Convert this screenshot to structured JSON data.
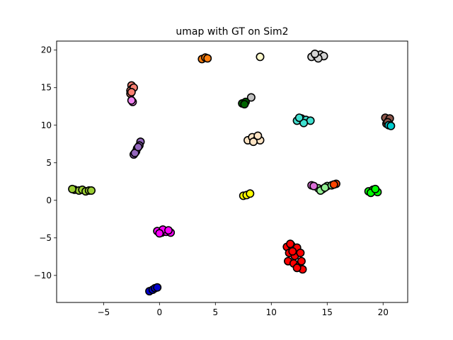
{
  "chart_data": {
    "type": "scatter",
    "title": "umap with GT on Sim2",
    "xlabel": "",
    "ylabel": "",
    "xlim": [
      -9.2,
      22.2
    ],
    "ylim": [
      -13.6,
      21.2
    ],
    "xticks": [
      -5,
      0,
      5,
      10,
      15,
      20
    ],
    "yticks": [
      -10,
      -5,
      0,
      5,
      10,
      15,
      20
    ],
    "xtick_labels": [
      "−5",
      "0",
      "5",
      "10",
      "15",
      "20"
    ],
    "ytick_labels": [
      "−10",
      "−5",
      "0",
      "5",
      "10",
      "15",
      "20"
    ],
    "grid": false,
    "legend": false,
    "marker_edge_color": "#000000",
    "series": [
      {
        "color": "#9acd32",
        "points": [
          [
            -7.6,
            1.4
          ],
          [
            -7.2,
            1.3
          ],
          [
            -6.9,
            1.4
          ],
          [
            -6.6,
            1.2
          ],
          [
            -6.3,
            1.3
          ],
          [
            -7.8,
            1.5
          ],
          [
            -6.1,
            1.3
          ]
        ]
      },
      {
        "color": "#fa8072",
        "points": [
          [
            -2.5,
            15.3
          ],
          [
            -2.4,
            14.9
          ],
          [
            -2.6,
            14.6
          ],
          [
            -2.6,
            14.2
          ],
          [
            -2.3,
            15.0
          ],
          [
            -2.5,
            14.4
          ]
        ]
      },
      {
        "color": "#ee82ee",
        "points": [
          [
            -2.4,
            13.1
          ],
          [
            -2.5,
            13.3
          ]
        ]
      },
      {
        "color": "#9467bd",
        "points": [
          [
            -1.7,
            7.8
          ],
          [
            -1.8,
            7.3
          ],
          [
            -2.0,
            6.9
          ],
          [
            -2.1,
            6.5
          ],
          [
            -2.3,
            6.1
          ],
          [
            -2.2,
            6.3
          ],
          [
            -1.9,
            7.1
          ]
        ]
      },
      {
        "color": "#ff00ff",
        "points": [
          [
            -0.2,
            -4.1
          ],
          [
            0.2,
            -4.3
          ],
          [
            0.6,
            -4.2
          ],
          [
            1.0,
            -4.3
          ],
          [
            0.3,
            -3.9
          ],
          [
            0.8,
            -4.0
          ],
          [
            0.0,
            -4.4
          ]
        ]
      },
      {
        "color": "#0000cd",
        "points": [
          [
            -0.9,
            -12.1
          ],
          [
            -0.6,
            -11.9
          ],
          [
            -0.4,
            -11.7
          ],
          [
            -0.2,
            -11.6
          ]
        ]
      },
      {
        "color": "#ff7f0e",
        "points": [
          [
            3.8,
            18.8
          ],
          [
            4.1,
            19.0
          ],
          [
            4.3,
            18.9
          ]
        ]
      },
      {
        "color": "#fffacd",
        "points": [
          [
            9.0,
            19.1
          ]
        ]
      },
      {
        "color": "#006400",
        "points": [
          [
            7.4,
            12.9
          ],
          [
            7.7,
            13.1
          ],
          [
            7.6,
            12.8
          ]
        ]
      },
      {
        "color": "#c0c0c0",
        "points": [
          [
            8.2,
            13.7
          ]
        ]
      },
      {
        "color": "#ffe4c4",
        "points": [
          [
            7.9,
            8.0
          ],
          [
            8.3,
            8.4
          ],
          [
            8.7,
            8.1
          ],
          [
            9.0,
            8.0
          ],
          [
            8.4,
            7.8
          ],
          [
            8.8,
            8.6
          ]
        ]
      },
      {
        "color": "#ffff00",
        "points": [
          [
            7.5,
            0.6
          ],
          [
            7.8,
            0.7
          ],
          [
            8.1,
            0.9
          ]
        ]
      },
      {
        "color": "#ff0000",
        "points": [
          [
            11.4,
            -6.2
          ],
          [
            11.8,
            -6.0
          ],
          [
            12.3,
            -6.3
          ],
          [
            11.6,
            -7.0
          ],
          [
            12.1,
            -7.4
          ],
          [
            12.6,
            -7.0
          ],
          [
            11.5,
            -8.1
          ],
          [
            12.0,
            -8.4
          ],
          [
            12.5,
            -8.7
          ],
          [
            12.8,
            -9.2
          ],
          [
            12.3,
            -9.0
          ],
          [
            11.9,
            -6.8
          ],
          [
            12.7,
            -8.1
          ],
          [
            11.7,
            -5.8
          ]
        ]
      },
      {
        "color": "#d3d3d3",
        "points": [
          [
            13.6,
            19.1
          ],
          [
            14.0,
            19.3
          ],
          [
            14.4,
            19.4
          ],
          [
            14.7,
            19.2
          ],
          [
            14.2,
            18.9
          ],
          [
            13.9,
            19.5
          ]
        ]
      },
      {
        "color": "#40e0d0",
        "points": [
          [
            12.3,
            10.6
          ],
          [
            12.7,
            10.9
          ],
          [
            13.1,
            10.7
          ],
          [
            13.5,
            10.6
          ],
          [
            12.9,
            10.3
          ],
          [
            12.5,
            11.0
          ]
        ]
      },
      {
        "color": "#90ee90",
        "points": [
          [
            14.2,
            1.6
          ],
          [
            14.6,
            1.5
          ],
          [
            15.0,
            1.9
          ],
          [
            14.4,
            1.3
          ],
          [
            14.8,
            1.7
          ],
          [
            15.4,
            2.0
          ]
        ]
      },
      {
        "color": "#ff4500",
        "points": [
          [
            15.8,
            2.2
          ],
          [
            15.6,
            2.1
          ]
        ]
      },
      {
        "color": "#da70d6",
        "points": [
          [
            13.6,
            2.0
          ],
          [
            13.8,
            1.9
          ]
        ]
      },
      {
        "color": "#00ff00",
        "points": [
          [
            18.7,
            1.2
          ],
          [
            19.1,
            1.4
          ],
          [
            19.5,
            1.1
          ],
          [
            18.9,
            1.0
          ],
          [
            19.3,
            1.5
          ]
        ]
      },
      {
        "color": "#8c564b",
        "points": [
          [
            20.2,
            11.0
          ],
          [
            20.5,
            10.6
          ],
          [
            20.3,
            10.2
          ],
          [
            20.6,
            10.9
          ],
          [
            20.4,
            10.4
          ]
        ]
      },
      {
        "color": "#00ced1",
        "points": [
          [
            20.5,
            10.0
          ],
          [
            20.7,
            9.9
          ]
        ]
      }
    ]
  }
}
